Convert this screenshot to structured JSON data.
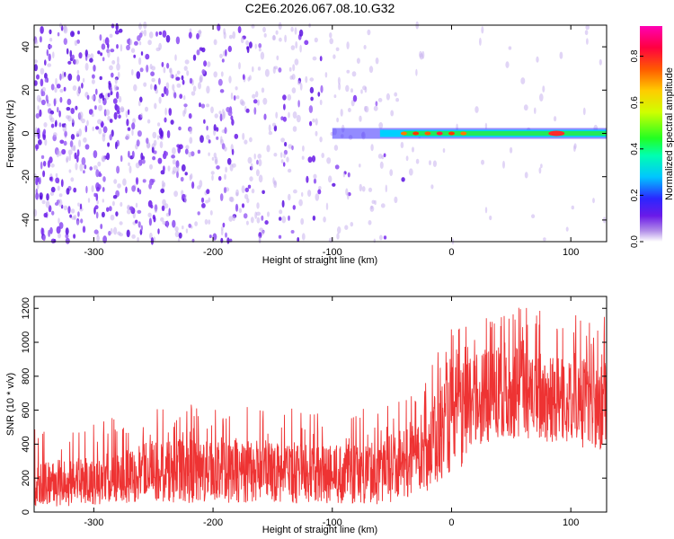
{
  "title": "C2E6.2026.067.08.10.G32",
  "chart_data": [
    {
      "type": "heatmap",
      "title": "C2E6.2026.067.08.10.G32",
      "xlabel": "Height of straight line (km)",
      "ylabel": "Frequency (Hz)",
      "xlim": [
        -350,
        130
      ],
      "ylim": [
        -50,
        50
      ],
      "x_ticks": [
        -300,
        -200,
        -100,
        0,
        100
      ],
      "x_tick_labels": [
        "-300",
        "-200",
        "-100",
        "0",
        "100"
      ],
      "y_ticks": [
        -40,
        -20,
        0,
        20,
        40
      ],
      "y_tick_labels": [
        "-40",
        "-20",
        "0",
        "20",
        "40"
      ],
      "colorbar": {
        "label": "Normalized spectral amplitude",
        "range": [
          0,
          0.93
        ],
        "ticks": [
          0,
          0.2,
          0.4,
          0.6,
          0.8
        ],
        "tick_labels": [
          "0.0",
          "0.2",
          "0.4",
          "0.6",
          "0.8"
        ]
      },
      "signal_band": {
        "frequency_hz": 0,
        "start_height_km": -100,
        "end_height_km": 130
      }
    },
    {
      "type": "line",
      "xlabel": "Height of straight line (km)",
      "ylabel": "SNR (10 * v/v)",
      "xlim": [
        -350,
        130
      ],
      "ylim": [
        0,
        1270
      ],
      "x_ticks": [
        -300,
        -200,
        -100,
        0,
        100
      ],
      "x_tick_labels": [
        "-300",
        "-200",
        "-100",
        "0",
        "100"
      ],
      "y_ticks": [
        0,
        200,
        400,
        600,
        800,
        1000,
        1200
      ],
      "y_tick_labels": [
        "0",
        "200",
        "400",
        "600",
        "800",
        "1000",
        "1200"
      ],
      "color": "#ee3333",
      "envelope_km": [
        -350,
        -300,
        -260,
        -200,
        -150,
        -100,
        -60,
        -40,
        -20,
        0,
        20,
        40,
        60,
        80,
        100,
        130
      ],
      "envelope_low": [
        30,
        40,
        60,
        50,
        60,
        40,
        40,
        80,
        120,
        180,
        380,
        430,
        420,
        400,
        380,
        360
      ],
      "envelope_mid": [
        150,
        170,
        220,
        250,
        260,
        250,
        250,
        300,
        420,
        600,
        700,
        700,
        720,
        700,
        650,
        640
      ],
      "envelope_high": [
        330,
        350,
        450,
        480,
        450,
        420,
        440,
        560,
        700,
        900,
        1000,
        1050,
        1070,
        1000,
        1000,
        980
      ]
    }
  ]
}
